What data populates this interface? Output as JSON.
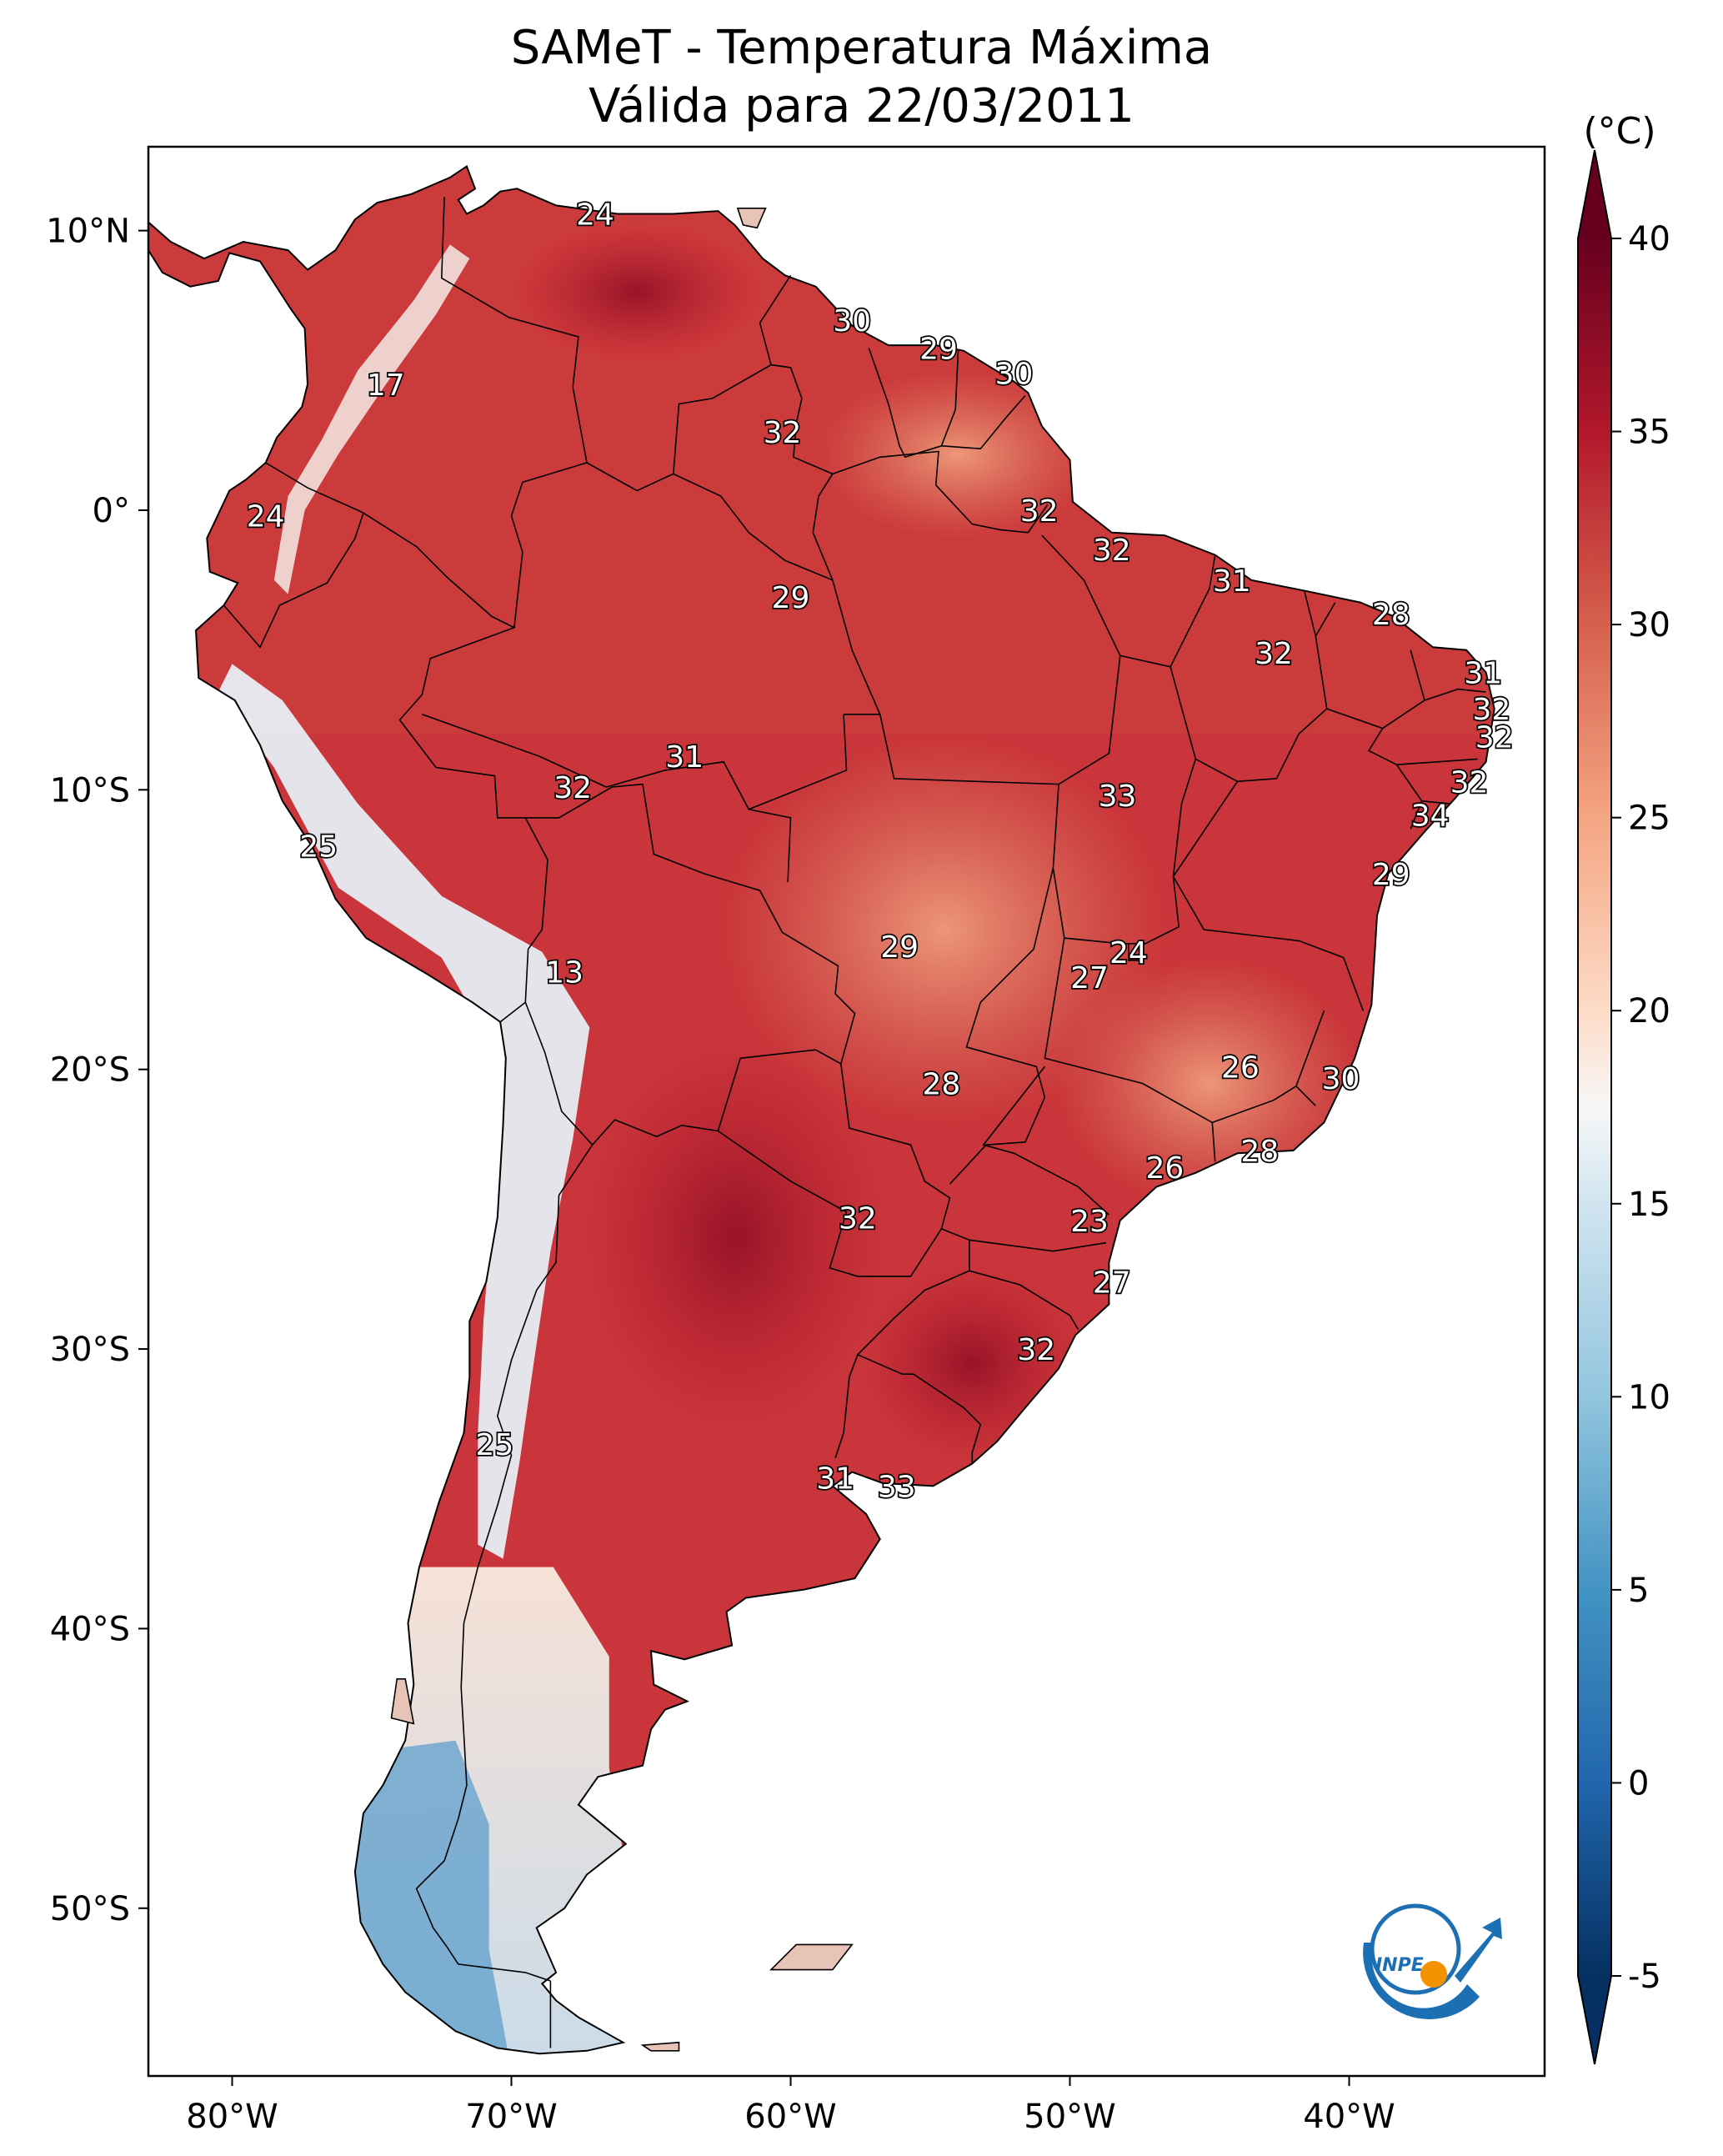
{
  "title": {
    "line1": "SAMeT - Temperatura Máxima",
    "line2": "Válida para 22/03/2011"
  },
  "map": {
    "lon_range": [
      -83,
      -33
    ],
    "lat_range": [
      -56,
      13
    ],
    "lon_ticks": [
      {
        "value": -80,
        "label": "80°W"
      },
      {
        "value": -70,
        "label": "70°W"
      },
      {
        "value": -60,
        "label": "60°W"
      },
      {
        "value": -50,
        "label": "50°W"
      },
      {
        "value": -40,
        "label": "40°W"
      }
    ],
    "lat_ticks": [
      {
        "value": 10,
        "label": "10°N"
      },
      {
        "value": 0,
        "label": "0°"
      },
      {
        "value": -10,
        "label": "10°S"
      },
      {
        "value": -20,
        "label": "20°S"
      },
      {
        "value": -30,
        "label": "30°S"
      },
      {
        "value": -40,
        "label": "40°S"
      },
      {
        "value": -50,
        "label": "50°S"
      }
    ],
    "city_labels": [
      {
        "lon": -67.0,
        "lat": 10.6,
        "text": "24"
      },
      {
        "lon": -74.5,
        "lat": 4.5,
        "text": "17"
      },
      {
        "lon": -57.8,
        "lat": 6.8,
        "text": "30"
      },
      {
        "lon": -54.7,
        "lat": 5.8,
        "text": "29"
      },
      {
        "lon": -52.0,
        "lat": 4.9,
        "text": "30"
      },
      {
        "lon": -60.3,
        "lat": 2.8,
        "text": "32"
      },
      {
        "lon": -51.1,
        "lat": 0.0,
        "text": "32"
      },
      {
        "lon": -78.8,
        "lat": -0.2,
        "text": "24"
      },
      {
        "lon": -48.5,
        "lat": -1.4,
        "text": "32"
      },
      {
        "lon": -60.0,
        "lat": -3.1,
        "text": "29"
      },
      {
        "lon": -44.2,
        "lat": -2.5,
        "text": "31"
      },
      {
        "lon": -38.5,
        "lat": -3.7,
        "text": "28"
      },
      {
        "lon": -42.7,
        "lat": -5.1,
        "text": "32"
      },
      {
        "lon": -35.2,
        "lat": -5.8,
        "text": "31"
      },
      {
        "lon": -34.9,
        "lat": -7.1,
        "text": "32"
      },
      {
        "lon": -34.8,
        "lat": -8.1,
        "text": "32"
      },
      {
        "lon": -63.8,
        "lat": -8.8,
        "text": "31"
      },
      {
        "lon": -67.8,
        "lat": -9.9,
        "text": "32"
      },
      {
        "lon": -35.7,
        "lat": -9.7,
        "text": "32"
      },
      {
        "lon": -48.3,
        "lat": -10.2,
        "text": "33"
      },
      {
        "lon": -37.1,
        "lat": -10.9,
        "text": "34"
      },
      {
        "lon": -76.9,
        "lat": -12.0,
        "text": "25"
      },
      {
        "lon": -38.5,
        "lat": -13.0,
        "text": "29"
      },
      {
        "lon": -56.1,
        "lat": -15.6,
        "text": "29"
      },
      {
        "lon": -47.9,
        "lat": -15.8,
        "text": "24"
      },
      {
        "lon": -49.3,
        "lat": -16.7,
        "text": "27"
      },
      {
        "lon": -68.1,
        "lat": -16.5,
        "text": "13"
      },
      {
        "lon": -43.9,
        "lat": -19.9,
        "text": "26"
      },
      {
        "lon": -40.3,
        "lat": -20.3,
        "text": "30"
      },
      {
        "lon": -54.6,
        "lat": -20.5,
        "text": "28"
      },
      {
        "lon": -43.2,
        "lat": -22.9,
        "text": "28"
      },
      {
        "lon": -46.6,
        "lat": -23.5,
        "text": "26"
      },
      {
        "lon": -57.6,
        "lat": -25.3,
        "text": "32"
      },
      {
        "lon": -49.3,
        "lat": -25.4,
        "text": "23"
      },
      {
        "lon": -48.5,
        "lat": -27.6,
        "text": "27"
      },
      {
        "lon": -51.2,
        "lat": -30.0,
        "text": "32"
      },
      {
        "lon": -70.6,
        "lat": -33.4,
        "text": "25"
      },
      {
        "lon": -58.4,
        "lat": -34.6,
        "text": "31"
      },
      {
        "lon": -56.2,
        "lat": -34.9,
        "text": "33"
      }
    ]
  },
  "colorbar": {
    "unit": "(°C)",
    "min": -5,
    "max": 40,
    "tick_values": [
      -5,
      0,
      5,
      10,
      15,
      20,
      25,
      30,
      35,
      40
    ],
    "tick_labels": [
      "-5",
      "0",
      "5",
      "10",
      "15",
      "20",
      "25",
      "30",
      "35",
      "40"
    ],
    "stops": [
      {
        "value": -5,
        "color": "#053061"
      },
      {
        "value": 0,
        "color": "#2166ac"
      },
      {
        "value": 5,
        "color": "#4393c3"
      },
      {
        "value": 10,
        "color": "#92c5de"
      },
      {
        "value": 15,
        "color": "#d1e5f0"
      },
      {
        "value": 17.5,
        "color": "#f7f7f7"
      },
      {
        "value": 20,
        "color": "#fddbc7"
      },
      {
        "value": 25,
        "color": "#f4a582"
      },
      {
        "value": 30,
        "color": "#d6604d"
      },
      {
        "value": 35,
        "color": "#b2182b"
      },
      {
        "value": 40,
        "color": "#67001f"
      }
    ]
  },
  "logo": {
    "text": "INPE"
  }
}
